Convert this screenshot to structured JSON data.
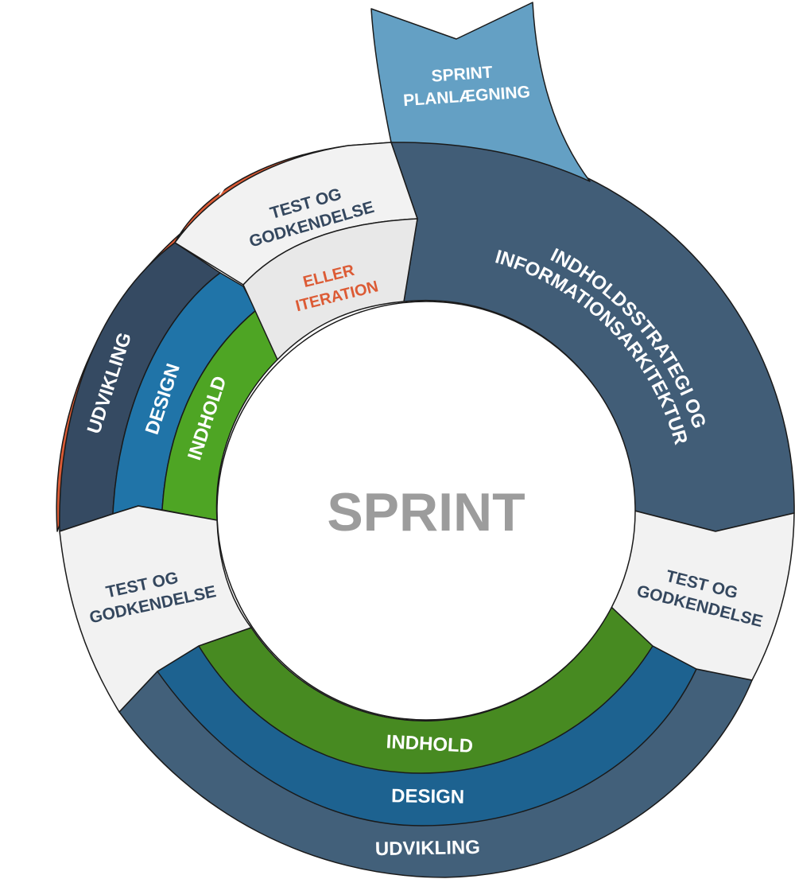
{
  "center": {
    "label": "SPRINT"
  },
  "planning": {
    "line1": "SPRINT",
    "line2": "PLANLÆGNING"
  },
  "top_right": {
    "line1": "INDHOLDSSTRATEGI OG",
    "line2": "INFORMATIONSARKITEKTUR"
  },
  "test_top": {
    "line1": "TEST OG",
    "line2": "GODKENDELSE"
  },
  "test_left": {
    "line1": "TEST OG",
    "line2": "GODKENDELSE"
  },
  "test_right": {
    "line1": "TEST OG",
    "line2": "GODKENDELSE"
  },
  "eller": {
    "line1": "ELLER",
    "line2": "ITERATION"
  },
  "iteration": {
    "label": "ITERATION"
  },
  "left_stack": {
    "development": "UDVIKLING",
    "design": "DESIGN",
    "content": "INDHOLD"
  },
  "bottom_stack": {
    "content": "INDHOLD",
    "design": "DESIGN",
    "development": "UDVIKLING"
  },
  "colors": {
    "planning": "#64a0c4",
    "strategy": "#415d77",
    "development": "#354a62",
    "design": "#2074a8",
    "content": "#4ea524",
    "content_bottom": "#478a21",
    "design_bottom": "#1d6290",
    "development_bottom": "#42607a",
    "iteration": "#dc5b35",
    "test": "#f2f2f2",
    "eller": "#e8e8e8",
    "center_text": "#9c9c9c",
    "label_dark": "#34475e",
    "label_orange": "#dc5b35"
  }
}
